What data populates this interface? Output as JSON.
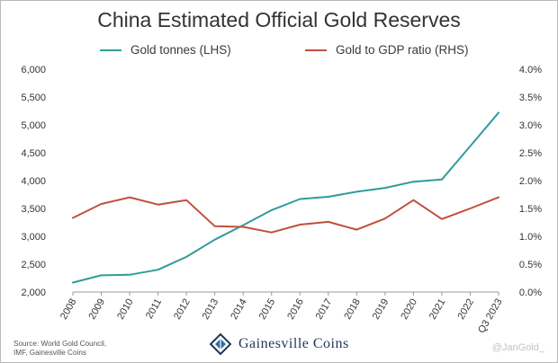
{
  "chart_data": {
    "type": "line",
    "title": "China Estimated Official Gold Reserves",
    "categories": [
      "2008",
      "2009",
      "2010",
      "2011",
      "2012",
      "2013",
      "2014",
      "2015",
      "2016",
      "2017",
      "2018",
      "2019",
      "2020",
      "2021",
      "2022",
      "Q3 2023"
    ],
    "series": [
      {
        "name": "Gold tonnes (LHS)",
        "axis": "left",
        "color": "#2e9c9a",
        "values": [
          2170,
          2300,
          2310,
          2400,
          2630,
          2940,
          3200,
          3470,
          3670,
          3710,
          3800,
          3870,
          3980,
          4020,
          4620,
          5220
        ]
      },
      {
        "name": "Gold to GDP ratio (RHS)",
        "axis": "right",
        "color": "#c0503a",
        "values": [
          1.33,
          1.58,
          1.7,
          1.57,
          1.65,
          1.18,
          1.17,
          1.07,
          1.21,
          1.26,
          1.12,
          1.32,
          1.65,
          1.31,
          1.5,
          1.7
        ]
      }
    ],
    "left_axis": {
      "min": 2000,
      "max": 6000,
      "step": 500,
      "tick_labels": [
        "2,000",
        "2,500",
        "3,000",
        "3,500",
        "4,000",
        "4,500",
        "5,000",
        "5,500",
        "6,000"
      ]
    },
    "right_axis": {
      "min": 0,
      "max": 4,
      "step": 0.5,
      "tick_labels": [
        "0.0%",
        "0.5%",
        "1.0%",
        "1.5%",
        "2.0%",
        "2.5%",
        "3.0%",
        "3.5%",
        "4.0%"
      ]
    },
    "grid": false,
    "legend": "top"
  },
  "footer": {
    "source_line1": "Source: World Gold Council,",
    "source_line2": "IMF, Gainesville Coins",
    "brand": "Gainesville Coins",
    "handle": "@JanGold_"
  }
}
